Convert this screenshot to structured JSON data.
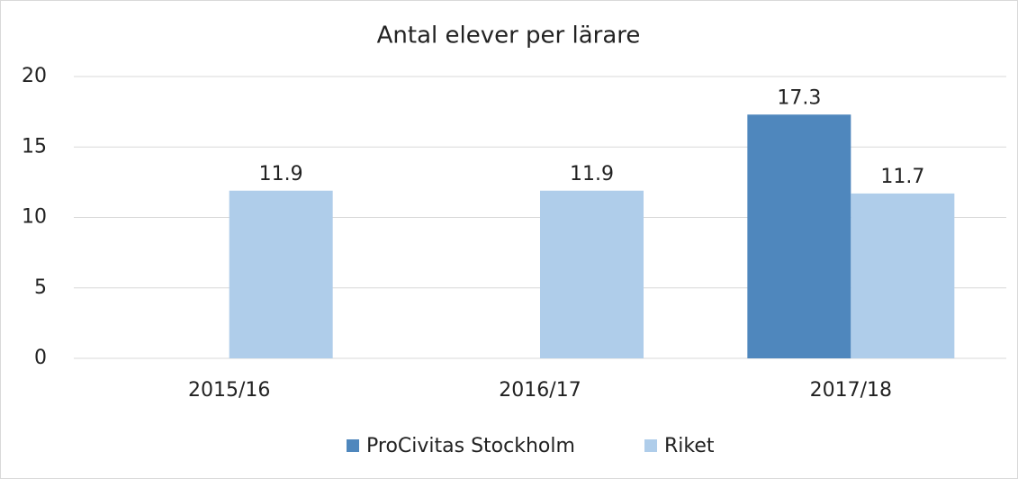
{
  "chart_data": {
    "type": "bar",
    "title": "Antal elever per lärare",
    "categories": [
      "2015/16",
      "2016/17",
      "2017/18"
    ],
    "series": [
      {
        "name": "ProCivitas Stockholm",
        "color": "#4f87bd",
        "values": [
          null,
          null,
          17.3
        ]
      },
      {
        "name": "Riket",
        "color": "#afcdea",
        "values": [
          11.9,
          11.9,
          11.7
        ]
      }
    ],
    "ylim": [
      0,
      20
    ],
    "yticks": [
      0,
      5,
      10,
      15,
      20
    ],
    "grid": true,
    "legend": "bottom"
  }
}
